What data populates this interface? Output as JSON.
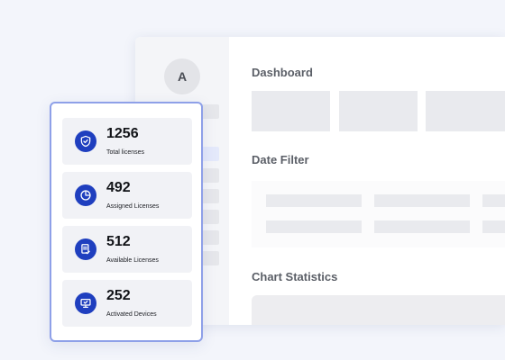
{
  "sidebar": {
    "avatar_initial": "A"
  },
  "main": {
    "dashboard_title": "Dashboard",
    "date_filter_title": "Date Filter",
    "chart_statistics_title": "Chart Statistics"
  },
  "stats": [
    {
      "value": "1256",
      "label": "Total licenses",
      "icon": "shield-check-icon"
    },
    {
      "value": "492",
      "label": "Assigned Licenses",
      "icon": "pie-chart-icon"
    },
    {
      "value": "512",
      "label": "Available Licenses",
      "icon": "document-check-icon"
    },
    {
      "value": "252",
      "label": "Activated Devices",
      "icon": "monitor-icon"
    }
  ],
  "colors": {
    "accent": "#1f3fbf",
    "card_border": "#8ea0e8",
    "page_background": "#f3f5fb"
  }
}
